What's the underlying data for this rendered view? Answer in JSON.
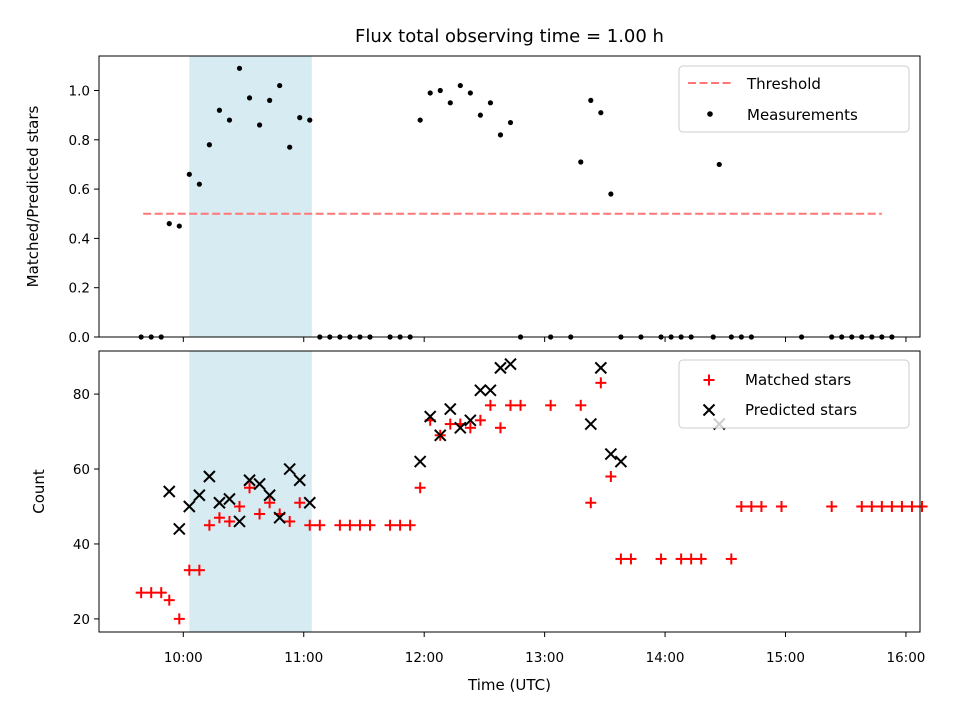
{
  "chart_data": [
    {
      "type": "scatter",
      "title": "Flux total observing time = 1.00 h",
      "ylabel": "Matched/Predicted stars",
      "xlim": [
        "09:18",
        "16:07"
      ],
      "ylim": [
        0,
        1.14
      ],
      "yticks": [
        "0.0",
        "0.2",
        "0.4",
        "0.6",
        "0.8",
        "1.0"
      ],
      "legend_position": "top-right",
      "shaded_span": {
        "from": "10:03",
        "to": "11:04",
        "color": "#add8e6"
      },
      "threshold": {
        "name": "Threshold",
        "value": 0.5,
        "from": "09:40",
        "to": "15:48",
        "color": "#ff7777",
        "style": "dashed"
      },
      "series": [
        {
          "name": "Measurements",
          "color": "#000000",
          "marker": "dot",
          "points": [
            [
              "09:39",
              0
            ],
            [
              "09:44",
              0
            ],
            [
              "09:49",
              0
            ],
            [
              "09:53",
              0.46
            ],
            [
              "09:58",
              0.45
            ],
            [
              "10:03",
              0.66
            ],
            [
              "10:08",
              0.62
            ],
            [
              "10:13",
              0.78
            ],
            [
              "10:18",
              0.92
            ],
            [
              "10:23",
              0.88
            ],
            [
              "10:28",
              1.09
            ],
            [
              "10:33",
              0.97
            ],
            [
              "10:38",
              0.86
            ],
            [
              "10:43",
              0.96
            ],
            [
              "10:48",
              1.02
            ],
            [
              "10:53",
              0.77
            ],
            [
              "10:58",
              0.89
            ],
            [
              "11:03",
              0.88
            ],
            [
              "11:08",
              0
            ],
            [
              "11:13",
              0
            ],
            [
              "11:18",
              0
            ],
            [
              "11:23",
              0
            ],
            [
              "11:28",
              0
            ],
            [
              "11:33",
              0
            ],
            [
              "11:43",
              0
            ],
            [
              "11:48",
              0
            ],
            [
              "11:53",
              0
            ],
            [
              "11:58",
              0.88
            ],
            [
              "12:03",
              0.99
            ],
            [
              "12:08",
              1.0
            ],
            [
              "12:13",
              0.95
            ],
            [
              "12:18",
              1.02
            ],
            [
              "12:23",
              0.99
            ],
            [
              "12:28",
              0.9
            ],
            [
              "12:33",
              0.95
            ],
            [
              "12:38",
              0.82
            ],
            [
              "12:43",
              0.87
            ],
            [
              "12:48",
              0
            ],
            [
              "13:03",
              0
            ],
            [
              "13:13",
              0
            ],
            [
              "13:18",
              0.71
            ],
            [
              "13:23",
              0.96
            ],
            [
              "13:28",
              0.91
            ],
            [
              "13:33",
              0.58
            ],
            [
              "13:38",
              0
            ],
            [
              "13:48",
              0
            ],
            [
              "13:58",
              0
            ],
            [
              "14:03",
              0
            ],
            [
              "14:08",
              0
            ],
            [
              "14:13",
              0
            ],
            [
              "14:24",
              0
            ],
            [
              "14:27",
              0.7
            ],
            [
              "14:33",
              0
            ],
            [
              "14:38",
              0
            ],
            [
              "14:43",
              0
            ],
            [
              "15:08",
              0
            ],
            [
              "15:23",
              0
            ],
            [
              "15:28",
              0
            ],
            [
              "15:33",
              0
            ],
            [
              "15:38",
              0
            ],
            [
              "15:43",
              0
            ],
            [
              "15:48",
              0
            ],
            [
              "15:53",
              0
            ]
          ]
        }
      ]
    },
    {
      "type": "scatter",
      "xlabel": "Time (UTC)",
      "ylabel": "Count",
      "xlim": [
        "09:18",
        "16:07"
      ],
      "ylim": [
        16.5,
        91.5
      ],
      "xticks": [
        "10:00",
        "11:00",
        "12:00",
        "13:00",
        "14:00",
        "15:00",
        "16:00"
      ],
      "yticks": [
        "20",
        "40",
        "60",
        "80"
      ],
      "legend_position": "top-right",
      "shaded_span": {
        "from": "10:03",
        "to": "11:04",
        "color": "#add8e6"
      },
      "series": [
        {
          "name": "Matched stars",
          "color": "#ff0000",
          "marker": "plus",
          "points": [
            [
              "09:39",
              27
            ],
            [
              "09:44",
              27
            ],
            [
              "09:49",
              27
            ],
            [
              "09:53",
              25
            ],
            [
              "09:58",
              20
            ],
            [
              "10:03",
              33
            ],
            [
              "10:08",
              33
            ],
            [
              "10:13",
              45
            ],
            [
              "10:18",
              47
            ],
            [
              "10:23",
              46
            ],
            [
              "10:28",
              50
            ],
            [
              "10:33",
              55
            ],
            [
              "10:38",
              48
            ],
            [
              "10:43",
              51
            ],
            [
              "10:48",
              48
            ],
            [
              "10:53",
              46
            ],
            [
              "10:58",
              51
            ],
            [
              "11:03",
              45
            ],
            [
              "11:08",
              45
            ],
            [
              "11:18",
              45
            ],
            [
              "11:23",
              45
            ],
            [
              "11:28",
              45
            ],
            [
              "11:33",
              45
            ],
            [
              "11:43",
              45
            ],
            [
              "11:48",
              45
            ],
            [
              "11:53",
              45
            ],
            [
              "11:58",
              55
            ],
            [
              "12:03",
              73
            ],
            [
              "12:08",
              69
            ],
            [
              "12:13",
              72
            ],
            [
              "12:18",
              72
            ],
            [
              "12:23",
              71
            ],
            [
              "12:28",
              73
            ],
            [
              "12:33",
              77
            ],
            [
              "12:38",
              71
            ],
            [
              "12:43",
              77
            ],
            [
              "12:48",
              77
            ],
            [
              "13:03",
              77
            ],
            [
              "13:18",
              77
            ],
            [
              "13:23",
              51
            ],
            [
              "13:28",
              83
            ],
            [
              "13:33",
              58
            ],
            [
              "13:38",
              36
            ],
            [
              "13:43",
              36
            ],
            [
              "13:58",
              36
            ],
            [
              "14:08",
              36
            ],
            [
              "14:13",
              36
            ],
            [
              "14:18",
              36
            ],
            [
              "14:33",
              36
            ],
            [
              "14:38",
              50
            ],
            [
              "14:43",
              50
            ],
            [
              "14:48",
              50
            ],
            [
              "14:58",
              50
            ],
            [
              "15:23",
              50
            ],
            [
              "15:38",
              50
            ],
            [
              "15:43",
              50
            ],
            [
              "15:48",
              50
            ],
            [
              "15:53",
              50
            ],
            [
              "15:58",
              50
            ],
            [
              "16:03",
              50
            ],
            [
              "16:08",
              50
            ]
          ]
        },
        {
          "name": "Predicted stars",
          "color": "#000000",
          "marker": "x",
          "points": [
            [
              "09:53",
              54
            ],
            [
              "09:58",
              44
            ],
            [
              "10:03",
              50
            ],
            [
              "10:08",
              53
            ],
            [
              "10:13",
              58
            ],
            [
              "10:18",
              51
            ],
            [
              "10:23",
              52
            ],
            [
              "10:28",
              46
            ],
            [
              "10:33",
              57
            ],
            [
              "10:38",
              56
            ],
            [
              "10:43",
              53
            ],
            [
              "10:48",
              47
            ],
            [
              "10:53",
              60
            ],
            [
              "10:58",
              57
            ],
            [
              "11:03",
              51
            ],
            [
              "11:58",
              62
            ],
            [
              "12:03",
              74
            ],
            [
              "12:08",
              69
            ],
            [
              "12:13",
              76
            ],
            [
              "12:18",
              71
            ],
            [
              "12:23",
              73
            ],
            [
              "12:28",
              81
            ],
            [
              "12:33",
              81
            ],
            [
              "12:38",
              87
            ],
            [
              "12:43",
              88
            ],
            [
              "13:23",
              72
            ],
            [
              "13:28",
              87
            ],
            [
              "13:33",
              64
            ],
            [
              "13:38",
              62
            ],
            [
              "14:27",
              72
            ]
          ]
        }
      ]
    }
  ]
}
